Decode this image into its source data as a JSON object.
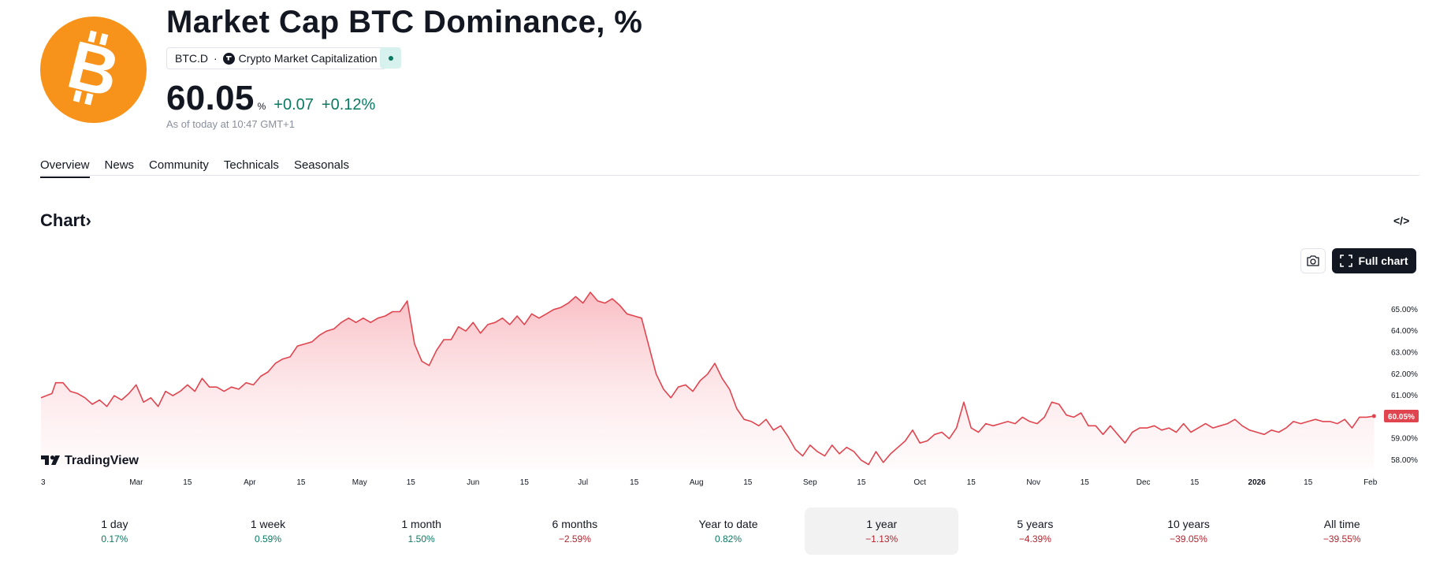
{
  "header": {
    "logo_icon": "bitcoin-icon",
    "title": "Market Cap BTC Dominance, %",
    "symbol": "BTC.D",
    "separator": "·",
    "exchange": "Crypto Market Capitalization",
    "price": "60.05",
    "unit": "%",
    "change_abs": "+0.07",
    "change_pct": "+0.12%",
    "as_of": "As of today at 10:47 GMT+1"
  },
  "tabs": [
    {
      "label": "Overview",
      "active": true
    },
    {
      "label": "News",
      "active": false
    },
    {
      "label": "Community",
      "active": false
    },
    {
      "label": "Technicals",
      "active": false
    },
    {
      "label": "Seasonals",
      "active": false
    }
  ],
  "chart_section": {
    "heading": "Chart",
    "chevron": "›",
    "embed_icon": "</>",
    "full_chart_label": "Full chart",
    "watermark": "TradingView"
  },
  "chart_data": {
    "type": "area",
    "line_color": "#e0454f",
    "fill_color": "#fbd0d4",
    "last_label": "60.05%",
    "ylim": [
      57.6,
      66.2
    ],
    "y_ticks": [
      "65.00%",
      "64.00%",
      "63.00%",
      "62.00%",
      "61.00%",
      "60.00%",
      "59.00%",
      "58.00%"
    ],
    "y_tick_values": [
      65,
      64,
      63,
      62,
      61,
      60,
      59,
      58
    ],
    "x_ticks": [
      {
        "label": "3",
        "day": 0
      },
      {
        "label": "Mar",
        "day": 26
      },
      {
        "label": "15",
        "day": 40
      },
      {
        "label": "Apr",
        "day": 57
      },
      {
        "label": "15",
        "day": 71
      },
      {
        "label": "May",
        "day": 87
      },
      {
        "label": "15",
        "day": 101
      },
      {
        "label": "Jun",
        "day": 118
      },
      {
        "label": "15",
        "day": 132
      },
      {
        "label": "Jul",
        "day": 148
      },
      {
        "label": "15",
        "day": 162
      },
      {
        "label": "Aug",
        "day": 179
      },
      {
        "label": "15",
        "day": 193
      },
      {
        "label": "Sep",
        "day": 210
      },
      {
        "label": "15",
        "day": 224
      },
      {
        "label": "Oct",
        "day": 240
      },
      {
        "label": "15",
        "day": 254
      },
      {
        "label": "Nov",
        "day": 271
      },
      {
        "label": "15",
        "day": 285
      },
      {
        "label": "Dec",
        "day": 301
      },
      {
        "label": "15",
        "day": 315
      },
      {
        "label": "2026",
        "day": 332,
        "bold": true
      },
      {
        "label": "15",
        "day": 346
      },
      {
        "label": "Feb",
        "day": 363
      }
    ],
    "x_range_days": [
      0,
      365
    ],
    "points": [
      [
        0,
        60.9
      ],
      [
        3,
        61.1
      ],
      [
        4,
        61.6
      ],
      [
        6,
        61.6
      ],
      [
        8,
        61.2
      ],
      [
        10,
        61.1
      ],
      [
        12,
        60.9
      ],
      [
        14,
        60.6
      ],
      [
        16,
        60.8
      ],
      [
        18,
        60.5
      ],
      [
        20,
        61.0
      ],
      [
        22,
        60.8
      ],
      [
        24,
        61.1
      ],
      [
        26,
        61.5
      ],
      [
        28,
        60.7
      ],
      [
        30,
        60.9
      ],
      [
        32,
        60.5
      ],
      [
        34,
        61.2
      ],
      [
        36,
        61.0
      ],
      [
        38,
        61.2
      ],
      [
        40,
        61.5
      ],
      [
        42,
        61.2
      ],
      [
        44,
        61.8
      ],
      [
        46,
        61.4
      ],
      [
        48,
        61.4
      ],
      [
        50,
        61.2
      ],
      [
        52,
        61.4
      ],
      [
        54,
        61.3
      ],
      [
        56,
        61.6
      ],
      [
        58,
        61.5
      ],
      [
        60,
        61.9
      ],
      [
        62,
        62.1
      ],
      [
        64,
        62.5
      ],
      [
        66,
        62.7
      ],
      [
        68,
        62.8
      ],
      [
        70,
        63.3
      ],
      [
        72,
        63.4
      ],
      [
        74,
        63.5
      ],
      [
        76,
        63.8
      ],
      [
        78,
        64.0
      ],
      [
        80,
        64.1
      ],
      [
        82,
        64.4
      ],
      [
        84,
        64.6
      ],
      [
        86,
        64.4
      ],
      [
        88,
        64.6
      ],
      [
        90,
        64.4
      ],
      [
        92,
        64.6
      ],
      [
        94,
        64.7
      ],
      [
        96,
        64.9
      ],
      [
        98,
        64.9
      ],
      [
        100,
        65.4
      ],
      [
        102,
        63.4
      ],
      [
        104,
        62.6
      ],
      [
        106,
        62.4
      ],
      [
        108,
        63.1
      ],
      [
        110,
        63.6
      ],
      [
        112,
        63.6
      ],
      [
        114,
        64.2
      ],
      [
        116,
        64.0
      ],
      [
        118,
        64.4
      ],
      [
        120,
        63.9
      ],
      [
        122,
        64.3
      ],
      [
        124,
        64.4
      ],
      [
        126,
        64.6
      ],
      [
        128,
        64.3
      ],
      [
        130,
        64.7
      ],
      [
        132,
        64.3
      ],
      [
        134,
        64.8
      ],
      [
        136,
        64.6
      ],
      [
        138,
        64.8
      ],
      [
        140,
        65.0
      ],
      [
        142,
        65.1
      ],
      [
        144,
        65.3
      ],
      [
        146,
        65.6
      ],
      [
        148,
        65.3
      ],
      [
        150,
        65.8
      ],
      [
        152,
        65.4
      ],
      [
        154,
        65.3
      ],
      [
        156,
        65.5
      ],
      [
        158,
        65.2
      ],
      [
        160,
        64.8
      ],
      [
        162,
        64.7
      ],
      [
        164,
        64.6
      ],
      [
        166,
        63.3
      ],
      [
        168,
        62.0
      ],
      [
        170,
        61.3
      ],
      [
        172,
        60.9
      ],
      [
        174,
        61.4
      ],
      [
        176,
        61.5
      ],
      [
        178,
        61.2
      ],
      [
        180,
        61.7
      ],
      [
        182,
        62.0
      ],
      [
        184,
        62.5
      ],
      [
        186,
        61.8
      ],
      [
        188,
        61.3
      ],
      [
        190,
        60.4
      ],
      [
        192,
        59.9
      ],
      [
        194,
        59.8
      ],
      [
        196,
        59.6
      ],
      [
        198,
        59.9
      ],
      [
        200,
        59.4
      ],
      [
        202,
        59.6
      ],
      [
        204,
        59.1
      ],
      [
        206,
        58.5
      ],
      [
        208,
        58.2
      ],
      [
        210,
        58.7
      ],
      [
        212,
        58.4
      ],
      [
        214,
        58.2
      ],
      [
        216,
        58.7
      ],
      [
        218,
        58.3
      ],
      [
        220,
        58.6
      ],
      [
        222,
        58.4
      ],
      [
        224,
        58.0
      ],
      [
        226,
        57.8
      ],
      [
        228,
        58.4
      ],
      [
        230,
        57.9
      ],
      [
        232,
        58.3
      ],
      [
        234,
        58.6
      ],
      [
        236,
        58.9
      ],
      [
        238,
        59.4
      ],
      [
        240,
        58.8
      ],
      [
        242,
        58.9
      ],
      [
        244,
        59.2
      ],
      [
        246,
        59.3
      ],
      [
        248,
        59.0
      ],
      [
        250,
        59.5
      ],
      [
        252,
        60.7
      ],
      [
        254,
        59.5
      ],
      [
        256,
        59.3
      ],
      [
        258,
        59.7
      ],
      [
        260,
        59.6
      ],
      [
        262,
        59.7
      ],
      [
        264,
        59.8
      ],
      [
        266,
        59.7
      ],
      [
        268,
        60.0
      ],
      [
        270,
        59.8
      ],
      [
        272,
        59.7
      ],
      [
        274,
        60.0
      ],
      [
        276,
        60.7
      ],
      [
        278,
        60.6
      ],
      [
        280,
        60.1
      ],
      [
        282,
        60.0
      ],
      [
        284,
        60.2
      ],
      [
        286,
        59.6
      ],
      [
        288,
        59.6
      ],
      [
        290,
        59.2
      ],
      [
        292,
        59.6
      ],
      [
        294,
        59.2
      ],
      [
        296,
        58.8
      ],
      [
        298,
        59.3
      ],
      [
        300,
        59.5
      ],
      [
        302,
        59.5
      ],
      [
        304,
        59.6
      ],
      [
        306,
        59.4
      ],
      [
        308,
        59.5
      ],
      [
        310,
        59.3
      ],
      [
        312,
        59.7
      ],
      [
        314,
        59.3
      ],
      [
        316,
        59.5
      ],
      [
        318,
        59.7
      ],
      [
        320,
        59.5
      ],
      [
        322,
        59.6
      ],
      [
        324,
        59.7
      ],
      [
        326,
        59.9
      ],
      [
        328,
        59.6
      ],
      [
        330,
        59.4
      ],
      [
        332,
        59.3
      ],
      [
        334,
        59.2
      ],
      [
        336,
        59.4
      ],
      [
        338,
        59.3
      ],
      [
        340,
        59.5
      ],
      [
        342,
        59.8
      ],
      [
        344,
        59.7
      ],
      [
        346,
        59.8
      ],
      [
        348,
        59.9
      ],
      [
        350,
        59.8
      ],
      [
        352,
        59.8
      ],
      [
        354,
        59.7
      ],
      [
        356,
        59.9
      ],
      [
        358,
        59.5
      ],
      [
        360,
        60.0
      ],
      [
        362,
        60.0
      ],
      [
        364,
        60.05
      ]
    ]
  },
  "ranges": [
    {
      "label": "1 day",
      "value": "0.17%",
      "dir": "pos",
      "active": false
    },
    {
      "label": "1 week",
      "value": "0.59%",
      "dir": "pos",
      "active": false
    },
    {
      "label": "1 month",
      "value": "1.50%",
      "dir": "pos",
      "active": false
    },
    {
      "label": "6 months",
      "value": "−2.59%",
      "dir": "neg",
      "active": false
    },
    {
      "label": "Year to date",
      "value": "0.82%",
      "dir": "pos",
      "active": false
    },
    {
      "label": "1 year",
      "value": "−1.13%",
      "dir": "neg",
      "active": true
    },
    {
      "label": "5 years",
      "value": "−4.39%",
      "dir": "neg",
      "active": false
    },
    {
      "label": "10 years",
      "value": "−39.05%",
      "dir": "neg",
      "active": false
    },
    {
      "label": "All time",
      "value": "−39.55%",
      "dir": "neg",
      "active": false
    }
  ],
  "colors": {
    "positive": "#0b7a62",
    "negative": "#b2252f",
    "brand_orange": "#f7931a",
    "active_range_bg": "#f2f2f2"
  }
}
